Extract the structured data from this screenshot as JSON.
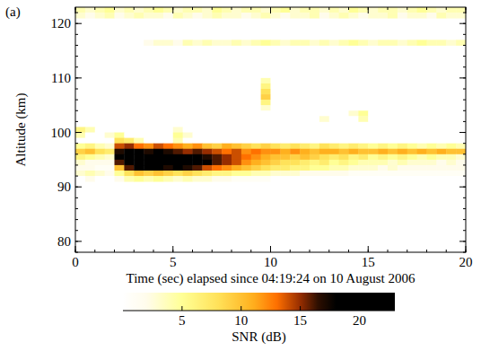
{
  "chart_data": {
    "type": "heatmap",
    "panel_label": "(a)",
    "x_label": "Time (sec) elapsed since 04:19:24 on 10 August 2006",
    "y_label": "Altitude (km)",
    "xlim": [
      0,
      20
    ],
    "xticks": [
      0,
      5,
      10,
      15,
      20
    ],
    "ylim": [
      78,
      123
    ],
    "yticks": [
      80,
      90,
      100,
      110,
      120
    ],
    "x": [
      0,
      0.5,
      1,
      1.5,
      2,
      2.5,
      3,
      3.5,
      4,
      4.5,
      5,
      5.5,
      6,
      6.5,
      7,
      7.5,
      8,
      8.5,
      9,
      9.5,
      10,
      10.5,
      11,
      11.5,
      12,
      12.5,
      13,
      13.5,
      14,
      14.5,
      15,
      15.5,
      16,
      16.5,
      17,
      17.5,
      18,
      18.5,
      19,
      19.5
    ],
    "y": [
      122,
      121,
      116,
      109,
      108,
      107,
      106,
      105,
      104,
      103,
      102,
      100,
      99,
      98,
      97,
      96,
      95,
      94,
      93,
      92,
      91
    ],
    "y_bin": 1,
    "z": [
      [
        4,
        3,
        4,
        5,
        3,
        4,
        3,
        4,
        5,
        4,
        3,
        4,
        4,
        3,
        5,
        4,
        3,
        4,
        4,
        3,
        4,
        5,
        3,
        4,
        4,
        3,
        4,
        3,
        5,
        4,
        3,
        4,
        4,
        3,
        4,
        5,
        4,
        3,
        4,
        4
      ],
      [
        3,
        2,
        3,
        4,
        2,
        3,
        4,
        3,
        3,
        2,
        4,
        3,
        2,
        3,
        4,
        3,
        3,
        2,
        3,
        4,
        3,
        2,
        3,
        3,
        4,
        2,
        3,
        4,
        3,
        2,
        3,
        3,
        4,
        2,
        3,
        3,
        2,
        4,
        3,
        3
      ],
      [
        0,
        0,
        0,
        0,
        0,
        0,
        0,
        2,
        3,
        3,
        2,
        4,
        3,
        4,
        3,
        3,
        4,
        3,
        4,
        5,
        4,
        3,
        4,
        4,
        3,
        4,
        3,
        4,
        5,
        4,
        3,
        4,
        4,
        3,
        4,
        5,
        4,
        4,
        3,
        4
      ],
      [
        0,
        0,
        0,
        0,
        0,
        0,
        0,
        0,
        0,
        0,
        0,
        0,
        0,
        0,
        0,
        0,
        0,
        0,
        0,
        4,
        0,
        0,
        0,
        0,
        0,
        0,
        0,
        0,
        0,
        0,
        0,
        0,
        0,
        0,
        0,
        0,
        0,
        0,
        0,
        0
      ],
      [
        0,
        0,
        0,
        0,
        0,
        0,
        0,
        0,
        0,
        0,
        0,
        0,
        0,
        0,
        0,
        0,
        0,
        0,
        0,
        6,
        0,
        0,
        0,
        0,
        0,
        0,
        0,
        0,
        0,
        0,
        0,
        0,
        0,
        0,
        0,
        0,
        0,
        0,
        0,
        0
      ],
      [
        0,
        0,
        0,
        0,
        0,
        0,
        0,
        0,
        0,
        0,
        0,
        0,
        0,
        0,
        0,
        0,
        0,
        0,
        0,
        8,
        0,
        0,
        0,
        0,
        0,
        0,
        0,
        0,
        0,
        0,
        0,
        0,
        0,
        0,
        0,
        0,
        0,
        0,
        0,
        0
      ],
      [
        0,
        0,
        0,
        0,
        0,
        0,
        0,
        0,
        0,
        0,
        0,
        0,
        0,
        0,
        0,
        0,
        0,
        0,
        0,
        9,
        0,
        0,
        0,
        0,
        0,
        0,
        0,
        0,
        0,
        0,
        0,
        0,
        0,
        0,
        0,
        0,
        0,
        0,
        0,
        0
      ],
      [
        0,
        0,
        0,
        0,
        0,
        0,
        0,
        0,
        0,
        0,
        0,
        0,
        0,
        0,
        0,
        0,
        0,
        0,
        0,
        6,
        0,
        0,
        0,
        0,
        0,
        0,
        0,
        0,
        0,
        0,
        0,
        0,
        0,
        0,
        0,
        0,
        0,
        0,
        0,
        0
      ],
      [
        0,
        0,
        0,
        0,
        0,
        0,
        0,
        0,
        0,
        0,
        0,
        0,
        0,
        0,
        0,
        0,
        0,
        0,
        0,
        3,
        0,
        0,
        0,
        0,
        0,
        0,
        0,
        0,
        0,
        0,
        0,
        0,
        0,
        0,
        0,
        0,
        0,
        0,
        0,
        0
      ],
      [
        0,
        0,
        0,
        0,
        0,
        0,
        0,
        0,
        0,
        0,
        0,
        0,
        0,
        0,
        0,
        0,
        0,
        0,
        0,
        0,
        0,
        0,
        0,
        0,
        0,
        0,
        0,
        0,
        3,
        5,
        0,
        0,
        0,
        0,
        0,
        0,
        0,
        0,
        0,
        0
      ],
      [
        0,
        0,
        0,
        0,
        0,
        0,
        0,
        0,
        0,
        0,
        0,
        0,
        0,
        0,
        0,
        0,
        0,
        0,
        0,
        0,
        0,
        0,
        0,
        0,
        0,
        3,
        0,
        0,
        0,
        4,
        0,
        0,
        0,
        0,
        0,
        0,
        0,
        0,
        0,
        0
      ],
      [
        6,
        4,
        0,
        0,
        0,
        0,
        0,
        0,
        0,
        0,
        3,
        0,
        0,
        0,
        0,
        0,
        0,
        0,
        0,
        0,
        0,
        0,
        0,
        0,
        0,
        0,
        0,
        0,
        0,
        0,
        0,
        0,
        0,
        0,
        0,
        0,
        0,
        0,
        0,
        0
      ],
      [
        4,
        0,
        0,
        3,
        5,
        0,
        0,
        0,
        0,
        0,
        5,
        3,
        0,
        0,
        0,
        0,
        0,
        0,
        0,
        0,
        0,
        0,
        0,
        0,
        0,
        0,
        0,
        0,
        0,
        0,
        0,
        0,
        0,
        0,
        0,
        0,
        0,
        0,
        0,
        0
      ],
      [
        0,
        0,
        0,
        0,
        8,
        7,
        4,
        0,
        0,
        0,
        4,
        0,
        0,
        0,
        0,
        0,
        0,
        0,
        0,
        0,
        0,
        0,
        0,
        0,
        0,
        0,
        0,
        0,
        0,
        0,
        0,
        0,
        0,
        0,
        0,
        0,
        0,
        0,
        0,
        0
      ],
      [
        5,
        6,
        4,
        3,
        14,
        15,
        13,
        12,
        14,
        13,
        12,
        11,
        12,
        10,
        9,
        11,
        10,
        9,
        8,
        9,
        8,
        7,
        8,
        7,
        6,
        8,
        7,
        6,
        7,
        6,
        5,
        6,
        5,
        6,
        5,
        4,
        5,
        4,
        5,
        4
      ],
      [
        9,
        10,
        8,
        7,
        17,
        19,
        18,
        17,
        18,
        17,
        16,
        15,
        16,
        15,
        14,
        13,
        14,
        12,
        13,
        12,
        12,
        11,
        12,
        11,
        10,
        11,
        11,
        10,
        11,
        10,
        10,
        11,
        10,
        11,
        10,
        11,
        10,
        11,
        10,
        10
      ],
      [
        6,
        5,
        4,
        3,
        18,
        21,
        22,
        21,
        20,
        21,
        19,
        20,
        18,
        17,
        16,
        15,
        14,
        13,
        12,
        11,
        10,
        10,
        9,
        10,
        9,
        8,
        7,
        8,
        6,
        7,
        5,
        6,
        5,
        6,
        5,
        4,
        5,
        4,
        4,
        3
      ],
      [
        3,
        2,
        2,
        2,
        16,
        20,
        22,
        22,
        21,
        20,
        21,
        20,
        19,
        18,
        16,
        15,
        14,
        12,
        11,
        10,
        9,
        8,
        8,
        7,
        6,
        7,
        5,
        6,
        5,
        4,
        4,
        4,
        3,
        4,
        3,
        3,
        3,
        2,
        3,
        2
      ],
      [
        2,
        2,
        1,
        1,
        10,
        16,
        18,
        19,
        18,
        17,
        18,
        17,
        16,
        14,
        13,
        12,
        11,
        10,
        9,
        8,
        7,
        7,
        6,
        6,
        5,
        5,
        4,
        4,
        3,
        3,
        3,
        2,
        3,
        2,
        2,
        2,
        2,
        2,
        2,
        2
      ],
      [
        3,
        4,
        3,
        2,
        5,
        8,
        10,
        9,
        10,
        9,
        8,
        9,
        8,
        7,
        6,
        6,
        5,
        5,
        4,
        4,
        3,
        3,
        3,
        2,
        2,
        2,
        2,
        2,
        1,
        1,
        1,
        1,
        1,
        1,
        1,
        1,
        1,
        1,
        1,
        1
      ],
      [
        0,
        2,
        0,
        0,
        2,
        4,
        5,
        4,
        5,
        4,
        3,
        4,
        3,
        3,
        2,
        2,
        1,
        1,
        1,
        1,
        0,
        0,
        0,
        0,
        0,
        0,
        0,
        0,
        0,
        0,
        0,
        0,
        0,
        0,
        0,
        0,
        0,
        0,
        0,
        0
      ]
    ],
    "colorbar": {
      "label": "SNR (dB)",
      "range": [
        0,
        23
      ],
      "ticks": [
        5,
        10,
        15,
        20
      ]
    }
  }
}
